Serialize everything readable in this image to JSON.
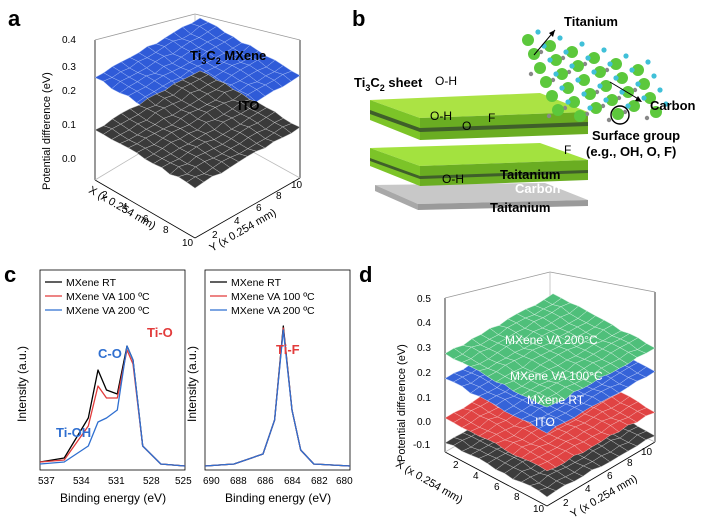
{
  "panels": {
    "a": {
      "label": "a",
      "zlabel": "Potential difference (eV)",
      "xlabel": "X (x 0.254 mm)",
      "ylabel": "Y (x 0.254 mm)",
      "zticks": [
        "0.0",
        "0.1",
        "0.2",
        "0.3",
        "0.4"
      ],
      "xticks": [
        "2",
        "4",
        "6",
        "8",
        "10"
      ],
      "yticks": [
        "2",
        "4",
        "6",
        "8",
        "10"
      ],
      "surface_labels": [
        "Ti3C2 MXene",
        "ITO"
      ]
    },
    "b": {
      "label": "b",
      "sheet_label": "Ti3C2 sheet",
      "atom_labels": [
        "Titanium",
        "Carbon"
      ],
      "surface_group_label": "Surface group",
      "surface_group_example": "(e.g., OH, O, F)",
      "layer_labels": [
        "Taitanium",
        "Carbon",
        "Taitanium"
      ],
      "groups": [
        "O-H",
        "O-H",
        "O",
        "F",
        "F",
        "O-H"
      ]
    },
    "c": {
      "label": "c",
      "ylabel": "Intensity (a.u.)",
      "xlabel": "Binding energy (eV)",
      "left_ticks": [
        "537",
        "534",
        "531",
        "528",
        "525"
      ],
      "right_ticks": [
        "690",
        "688",
        "686",
        "684",
        "682",
        "680"
      ],
      "legend": [
        "MXene RT",
        "MXene VA 100 ºC",
        "MXene VA 200 ºC"
      ],
      "peak_labels": [
        "Ti-O",
        "C-O",
        "Ti-OH",
        "Ti-F"
      ]
    },
    "d": {
      "label": "d",
      "zlabel": "Potential difference (eV)",
      "xlabel": "X (x 0.254 mm)",
      "ylabel": "Y (x 0.254 mm)",
      "zticks": [
        "-0.1",
        "0.0",
        "0.1",
        "0.2",
        "0.3",
        "0.4",
        "0.5"
      ],
      "xticks": [
        "2",
        "4",
        "6",
        "8",
        "10"
      ],
      "yticks": [
        "2",
        "4",
        "6",
        "8",
        "10"
      ],
      "surface_labels": [
        "MXene VA 200°C",
        "MXene VA 100°C",
        "MXene RT",
        "ITO"
      ]
    }
  },
  "colors": {
    "mxene_blue": "#2f5bd8",
    "ito_dark": "#3a3a3a",
    "green_layer": "#8cd12a",
    "red": "#e23b3b",
    "teal": "#3ab08a",
    "carbon_dot": "#5cc83c",
    "ti_dot": "#40c0d8"
  },
  "chart_data": [
    {
      "type": "surface",
      "panel": "a",
      "zlim": [
        0,
        0.4
      ],
      "xlim": [
        0,
        10
      ],
      "ylim": [
        0,
        10
      ],
      "series": [
        {
          "name": "Ti3C2 MXene",
          "z": 0.27
        },
        {
          "name": "ITO",
          "z": 0.1
        }
      ]
    },
    {
      "type": "line",
      "panel": "c-left",
      "xlim": [
        537,
        525
      ],
      "series": [
        {
          "name": "MXene RT",
          "x": [
            537,
            535,
            533,
            532.2,
            531.5,
            530.6,
            529.8,
            529.3,
            528.5,
            527,
            525
          ],
          "y": [
            0.04,
            0.06,
            0.26,
            0.5,
            0.4,
            0.38,
            0.62,
            0.55,
            0.12,
            0.03,
            0.02
          ]
        },
        {
          "name": "MXene VA 100 ºC",
          "x": [
            537,
            535,
            533,
            532.2,
            531.5,
            530.6,
            529.8,
            529.3,
            528.5,
            527,
            525
          ],
          "y": [
            0.04,
            0.05,
            0.22,
            0.42,
            0.36,
            0.36,
            0.6,
            0.53,
            0.12,
            0.03,
            0.02
          ]
        },
        {
          "name": "MXene VA 200 ºC",
          "x": [
            537,
            535,
            533,
            532.2,
            531.5,
            530.6,
            529.8,
            529.3,
            528.5,
            527,
            525
          ],
          "y": [
            0.03,
            0.04,
            0.12,
            0.24,
            0.26,
            0.3,
            0.62,
            0.55,
            0.12,
            0.03,
            0.02
          ]
        }
      ]
    },
    {
      "type": "line",
      "panel": "c-right",
      "xlim": [
        690,
        680
      ],
      "series": [
        {
          "name": "MXene RT",
          "x": [
            690,
            688,
            686,
            685.2,
            684.6,
            684,
            683.4,
            682.5,
            680
          ],
          "y": [
            0.02,
            0.03,
            0.08,
            0.25,
            0.72,
            0.3,
            0.1,
            0.03,
            0.02
          ]
        },
        {
          "name": "MXene VA 100 ºC",
          "x": [
            690,
            688,
            686,
            685.2,
            684.6,
            684,
            683.4,
            682.5,
            680
          ],
          "y": [
            0.02,
            0.03,
            0.08,
            0.25,
            0.71,
            0.3,
            0.1,
            0.03,
            0.02
          ]
        },
        {
          "name": "MXene VA 200 ºC",
          "x": [
            690,
            688,
            686,
            685.2,
            684.6,
            684,
            683.4,
            682.5,
            680
          ],
          "y": [
            0.02,
            0.03,
            0.08,
            0.25,
            0.7,
            0.3,
            0.1,
            0.03,
            0.02
          ]
        }
      ]
    },
    {
      "type": "surface",
      "panel": "d",
      "zlim": [
        -0.1,
        0.5
      ],
      "xlim": [
        0,
        10
      ],
      "ylim": [
        0,
        10
      ],
      "series": [
        {
          "name": "MXene VA 200°C",
          "z": 0.36
        },
        {
          "name": "MXene VA 100°C",
          "z": 0.26
        },
        {
          "name": "MXene RT",
          "z": 0.1
        },
        {
          "name": "ITO",
          "z": 0.0
        }
      ]
    }
  ]
}
